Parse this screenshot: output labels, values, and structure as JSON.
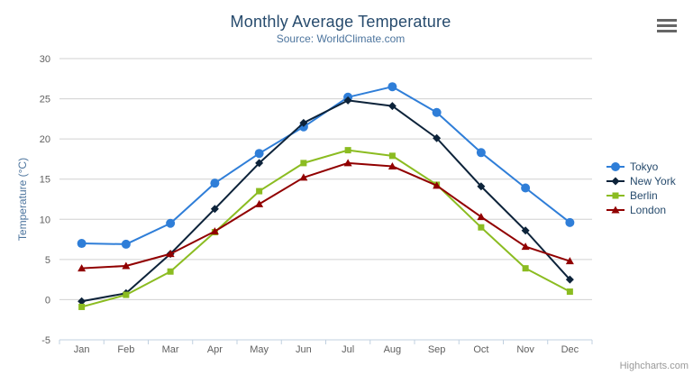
{
  "chart_data": {
    "type": "line",
    "title": "Monthly Average Temperature",
    "subtitle": "Source: WorldClimate.com",
    "categories": [
      "Jan",
      "Feb",
      "Mar",
      "Apr",
      "May",
      "Jun",
      "Jul",
      "Aug",
      "Sep",
      "Oct",
      "Nov",
      "Dec"
    ],
    "series": [
      {
        "name": "Tokyo",
        "color": "#2f7ed8",
        "marker": "circle",
        "values": [
          7.0,
          6.9,
          9.5,
          14.5,
          18.2,
          21.5,
          25.2,
          26.5,
          23.3,
          18.3,
          13.9,
          9.6
        ]
      },
      {
        "name": "New York",
        "color": "#0d233a",
        "marker": "diamond",
        "values": [
          -0.2,
          0.8,
          5.7,
          11.3,
          17.0,
          22.0,
          24.8,
          24.1,
          20.1,
          14.1,
          8.6,
          2.5
        ]
      },
      {
        "name": "Berlin",
        "color": "#8bbc21",
        "marker": "square",
        "values": [
          -0.9,
          0.6,
          3.5,
          8.4,
          13.5,
          17.0,
          18.6,
          17.9,
          14.3,
          9.0,
          3.9,
          1.0
        ]
      },
      {
        "name": "London",
        "color": "#910000",
        "marker": "triangle",
        "values": [
          3.9,
          4.2,
          5.7,
          8.5,
          11.9,
          15.2,
          17.0,
          16.6,
          14.2,
          10.3,
          6.6,
          4.8
        ]
      }
    ],
    "xlabel": "",
    "ylabel": "Temperature (°C)",
    "ylim": [
      -5,
      30
    ],
    "yticks": [
      -5,
      0,
      5,
      10,
      15,
      20,
      25,
      30
    ],
    "grid": true,
    "legend_position": "right",
    "axis_colors": {
      "grid": "#d0d0d0",
      "axis_line": "#c0d0e0",
      "tick": "#c0d0e0",
      "tick_label": "#606060"
    }
  },
  "toolbar": {
    "menu_icon": "hamburger"
  },
  "credits": {
    "label": "Highcharts.com"
  }
}
